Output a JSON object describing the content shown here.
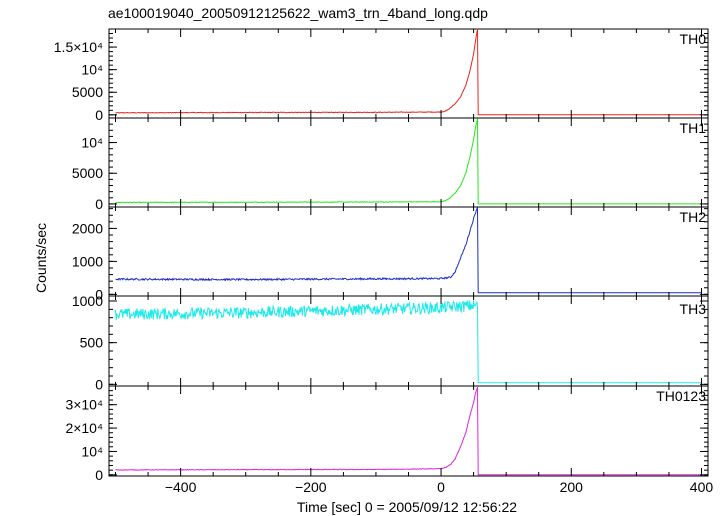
{
  "chart_data": {
    "type": "line",
    "title": "ae100019040_20050912125622_wam3_trn_4band_long.qdp",
    "xlabel": "Time [sec] 0 = 2005/09/12 12:56:22",
    "ylabel": "Counts/sec",
    "xlim": [
      -510,
      410
    ],
    "xticks": [
      -400,
      -200,
      0,
      200,
      400
    ],
    "xtick_labels": [
      "−400",
      "−200",
      "0",
      "200",
      "400"
    ],
    "grid": false,
    "panels": [
      {
        "name": "TH0",
        "color": "#e8251c",
        "ylim": [
          -700,
          19000
        ],
        "yticks": [
          0,
          5000,
          10000,
          15000
        ],
        "ytick_labels": [
          "0",
          "5000",
          "10⁴",
          "1.5×10⁴"
        ],
        "baseline": [
          [
            -500,
            450
          ],
          [
            -300,
            520
          ],
          [
            -100,
            560
          ],
          [
            0,
            620
          ],
          [
            8,
            900
          ],
          [
            15,
            1600
          ],
          [
            22,
            2500
          ],
          [
            30,
            4000
          ],
          [
            38,
            6500
          ],
          [
            44,
            9500
          ],
          [
            50,
            13500
          ],
          [
            53,
            16500
          ],
          [
            56,
            19000
          ],
          [
            57,
            0
          ],
          [
            400,
            0
          ]
        ],
        "noise": 70
      },
      {
        "name": "TH1",
        "color": "#26e61e",
        "ylim": [
          -500,
          14000
        ],
        "yticks": [
          0,
          5000,
          10000
        ],
        "ytick_labels": [
          "0",
          "5000",
          "10⁴"
        ],
        "baseline": [
          [
            -500,
            250
          ],
          [
            -300,
            280
          ],
          [
            -100,
            310
          ],
          [
            0,
            360
          ],
          [
            8,
            600
          ],
          [
            15,
            1100
          ],
          [
            22,
            1800
          ],
          [
            30,
            3000
          ],
          [
            38,
            5000
          ],
          [
            44,
            7500
          ],
          [
            50,
            10500
          ],
          [
            53,
            12500
          ],
          [
            56,
            13900
          ],
          [
            57,
            0
          ],
          [
            400,
            0
          ]
        ],
        "noise": 50
      },
      {
        "name": "TH2",
        "color": "#1c2ec4",
        "ylim": [
          -50,
          2650
        ],
        "yticks": [
          0,
          1000,
          2000
        ],
        "ytick_labels": [
          "0",
          "1000",
          "2000"
        ],
        "baseline": [
          [
            -500,
            460
          ],
          [
            -300,
            450
          ],
          [
            -100,
            470
          ],
          [
            0,
            480
          ],
          [
            15,
            520
          ],
          [
            22,
            700
          ],
          [
            30,
            1100
          ],
          [
            38,
            1500
          ],
          [
            44,
            1900
          ],
          [
            50,
            2300
          ],
          [
            55,
            2600
          ],
          [
            56,
            2650
          ],
          [
            57,
            50
          ],
          [
            400,
            50
          ]
        ],
        "noise": 25
      },
      {
        "name": "TH3",
        "color": "#1ce9ec",
        "ylim": [
          -20,
          1060
        ],
        "yticks": [
          0,
          500,
          1000
        ],
        "ytick_labels": [
          "0",
          "500",
          "1000"
        ],
        "baseline": [
          [
            -500,
            840
          ],
          [
            -300,
            860
          ],
          [
            -100,
            900
          ],
          [
            0,
            920
          ],
          [
            56,
            950
          ],
          [
            57,
            20
          ],
          [
            400,
            20
          ]
        ],
        "noise": 70
      },
      {
        "name": "TH0123",
        "color": "#dd27dd",
        "ylim": [
          -500,
          38000
        ],
        "yticks": [
          0,
          10000,
          20000,
          30000
        ],
        "ytick_labels": [
          "0",
          "10⁴",
          "2×10⁴",
          "3×10⁴"
        ],
        "baseline": [
          [
            -500,
            2100
          ],
          [
            -300,
            2200
          ],
          [
            -100,
            2300
          ],
          [
            0,
            2600
          ],
          [
            8,
            3300
          ],
          [
            15,
            4500
          ],
          [
            22,
            7000
          ],
          [
            30,
            12000
          ],
          [
            38,
            18000
          ],
          [
            44,
            25000
          ],
          [
            50,
            31000
          ],
          [
            53,
            35000
          ],
          [
            56,
            37500
          ],
          [
            57,
            0
          ],
          [
            400,
            0
          ]
        ],
        "noise": 120
      }
    ]
  }
}
